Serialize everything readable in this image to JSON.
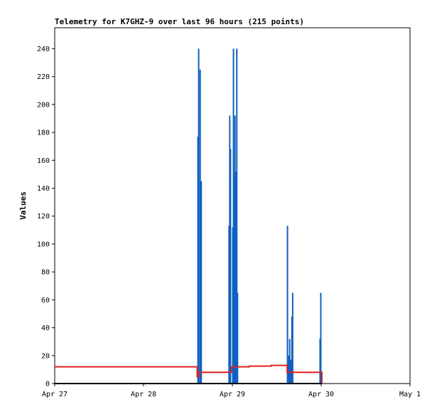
{
  "chart_data": {
    "type": "line",
    "title": "Telemetry for K7GHZ-9 over last 96 hours (215 points)",
    "xlabel": "",
    "ylabel": "Values",
    "x_ticks": [
      {
        "label": "Apr 27",
        "hours": 0
      },
      {
        "label": "Apr 28",
        "hours": 24
      },
      {
        "label": "Apr 29",
        "hours": 48
      },
      {
        "label": "Apr 30",
        "hours": 72
      },
      {
        "label": "May 1",
        "hours": 96
      }
    ],
    "xlim": [
      0,
      96
    ],
    "ylim": [
      0,
      255
    ],
    "y_ticks": [
      0,
      20,
      40,
      60,
      80,
      100,
      120,
      140,
      160,
      180,
      200,
      220,
      240
    ],
    "grid": false,
    "series": [
      {
        "color": "#1060c0",
        "kind": "spikes",
        "points": [
          [
            38.7,
            177
          ],
          [
            38.9,
            240
          ],
          [
            39.3,
            225
          ],
          [
            39.6,
            145
          ],
          [
            47.1,
            113
          ],
          [
            47.3,
            192
          ],
          [
            47.5,
            168
          ],
          [
            48.1,
            112
          ],
          [
            48.3,
            240
          ],
          [
            48.5,
            145
          ],
          [
            48.7,
            192
          ],
          [
            48.9,
            152
          ],
          [
            49.2,
            240
          ],
          [
            49.4,
            65
          ],
          [
            62.9,
            113
          ],
          [
            63.2,
            20
          ],
          [
            63.5,
            32
          ],
          [
            63.8,
            17
          ],
          [
            64.1,
            48
          ],
          [
            64.3,
            65
          ],
          [
            71.7,
            32
          ],
          [
            71.9,
            65
          ]
        ]
      },
      {
        "color": "#e02020",
        "kind": "steps",
        "points": [
          [
            0,
            12
          ],
          [
            38.5,
            12
          ],
          [
            38.5,
            5
          ],
          [
            39.0,
            5
          ],
          [
            39.0,
            8
          ],
          [
            47.8,
            8
          ],
          [
            47.8,
            12
          ],
          [
            52.6,
            12
          ],
          [
            52.6,
            12.5
          ],
          [
            58.5,
            12.5
          ],
          [
            58.5,
            13
          ],
          [
            62.8,
            13
          ],
          [
            62.8,
            8
          ],
          [
            72.2,
            8
          ],
          [
            72.2,
            0
          ]
        ]
      },
      {
        "color": "#000000",
        "kind": "line",
        "points": [
          [
            0,
            0
          ],
          [
            72.2,
            0
          ]
        ]
      }
    ]
  }
}
